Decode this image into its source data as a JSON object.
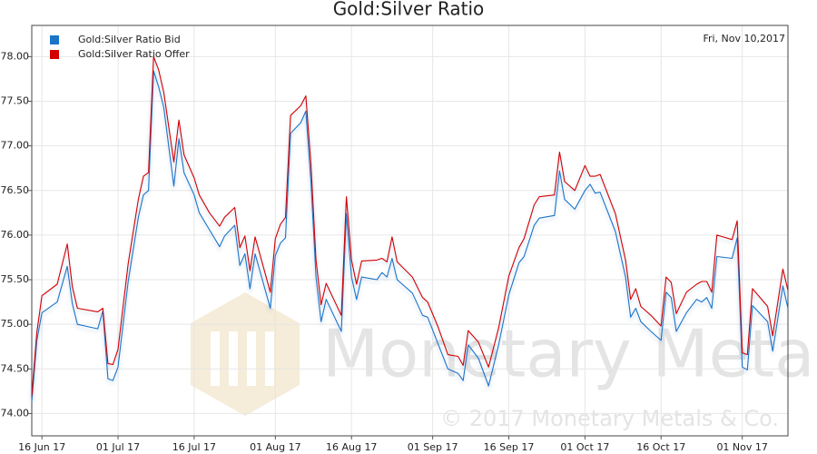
{
  "chart_data": {
    "type": "line",
    "title": "Gold:Silver Ratio",
    "date_label": "Fri, Nov 10,2017",
    "watermark": "Monetary Metals",
    "copyright": "© 2017 Monetary Metals & Co.",
    "legend": "top-left",
    "grid": true,
    "x": [
      "2017-06-14",
      "2017-06-15",
      "2017-06-16",
      "2017-06-19",
      "2017-06-21",
      "2017-06-22",
      "2017-06-23",
      "2017-06-27",
      "2017-06-28",
      "2017-06-29",
      "2017-06-30",
      "2017-07-01",
      "2017-07-03",
      "2017-07-05",
      "2017-07-06",
      "2017-07-07",
      "2017-07-08",
      "2017-07-09",
      "2017-07-10",
      "2017-07-12",
      "2017-07-13",
      "2017-07-14",
      "2017-07-16",
      "2017-07-17",
      "2017-07-19",
      "2017-07-21",
      "2017-07-22",
      "2017-07-24",
      "2017-07-25",
      "2017-07-26",
      "2017-07-27",
      "2017-07-28",
      "2017-07-31",
      "2017-08-01",
      "2017-08-02",
      "2017-08-03",
      "2017-08-04",
      "2017-08-06",
      "2017-08-07",
      "2017-08-08",
      "2017-08-09",
      "2017-08-10",
      "2017-08-11",
      "2017-08-14",
      "2017-08-15",
      "2017-08-16",
      "2017-08-17",
      "2017-08-18",
      "2017-08-21",
      "2017-08-22",
      "2017-08-23",
      "2017-08-24",
      "2017-08-25",
      "2017-08-28",
      "2017-08-30",
      "2017-08-31",
      "2017-09-02",
      "2017-09-04",
      "2017-09-06",
      "2017-09-07",
      "2017-09-08",
      "2017-09-10",
      "2017-09-12",
      "2017-09-14",
      "2017-09-16",
      "2017-09-18",
      "2017-09-19",
      "2017-09-21",
      "2017-09-22",
      "2017-09-25",
      "2017-09-26",
      "2017-09-27",
      "2017-09-29",
      "2017-10-01",
      "2017-10-02",
      "2017-10-03",
      "2017-10-04",
      "2017-10-07",
      "2017-10-09",
      "2017-10-10",
      "2017-10-11",
      "2017-10-12",
      "2017-10-14",
      "2017-10-16",
      "2017-10-17",
      "2017-10-18",
      "2017-10-19",
      "2017-10-21",
      "2017-10-23",
      "2017-10-24",
      "2017-10-25",
      "2017-10-26",
      "2017-10-27",
      "2017-10-30",
      "2017-10-31",
      "2017-11-01",
      "2017-11-02",
      "2017-11-03",
      "2017-11-06",
      "2017-11-07",
      "2017-11-09",
      "2017-11-10"
    ],
    "series": [
      {
        "name": "Gold:Silver Ratio Bid",
        "color": "#1a74c8",
        "values": [
          74.13,
          74.82,
          75.13,
          75.25,
          75.65,
          75.23,
          75.0,
          74.95,
          75.15,
          74.39,
          74.37,
          74.52,
          75.48,
          76.2,
          76.45,
          76.5,
          77.84,
          77.66,
          77.43,
          76.55,
          77.08,
          76.7,
          76.45,
          76.25,
          76.06,
          75.87,
          75.99,
          76.11,
          75.66,
          75.79,
          75.4,
          75.79,
          75.18,
          75.77,
          75.91,
          75.97,
          77.14,
          77.26,
          77.39,
          76.6,
          75.53,
          75.03,
          75.28,
          74.92,
          76.24,
          75.53,
          75.28,
          75.53,
          75.5,
          75.58,
          75.53,
          75.74,
          75.5,
          75.35,
          75.1,
          75.08,
          74.79,
          74.5,
          74.45,
          74.37,
          74.77,
          74.62,
          74.31,
          74.77,
          75.33,
          75.69,
          75.76,
          76.11,
          76.19,
          76.22,
          76.72,
          76.4,
          76.29,
          76.5,
          76.57,
          76.47,
          76.48,
          76.04,
          75.53,
          75.08,
          75.18,
          75.03,
          74.92,
          74.82,
          75.36,
          75.3,
          74.92,
          75.13,
          75.28,
          75.25,
          75.3,
          75.18,
          75.76,
          75.74,
          75.97,
          74.52,
          74.49,
          75.21,
          75.03,
          74.7,
          75.43,
          75.18
        ]
      },
      {
        "name": "Gold:Silver Ratio Offer",
        "color": "#d40000",
        "values": [
          74.2,
          74.91,
          75.32,
          75.45,
          75.9,
          75.42,
          75.18,
          75.14,
          75.18,
          74.56,
          74.55,
          74.72,
          75.68,
          76.4,
          76.66,
          76.7,
          78.0,
          77.85,
          77.6,
          76.82,
          77.29,
          76.9,
          76.64,
          76.45,
          76.25,
          76.1,
          76.2,
          76.31,
          75.86,
          75.99,
          75.6,
          75.98,
          75.36,
          75.96,
          76.12,
          76.2,
          77.34,
          77.45,
          77.56,
          76.8,
          75.72,
          75.22,
          75.46,
          75.1,
          76.43,
          75.72,
          75.45,
          75.71,
          75.72,
          75.74,
          75.7,
          75.98,
          75.7,
          75.53,
          75.3,
          75.25,
          74.98,
          74.66,
          74.64,
          74.54,
          74.93,
          74.8,
          74.52,
          74.96,
          75.54,
          75.86,
          75.96,
          76.34,
          76.43,
          76.45,
          76.93,
          76.6,
          76.5,
          76.78,
          76.66,
          76.66,
          76.68,
          76.24,
          75.72,
          75.28,
          75.4,
          75.2,
          75.1,
          74.98,
          75.53,
          75.47,
          75.12,
          75.36,
          75.45,
          75.48,
          75.48,
          75.36,
          76.0,
          75.95,
          76.16,
          74.68,
          74.66,
          75.4,
          75.2,
          74.87,
          75.62,
          75.38
        ]
      }
    ],
    "xlim": [
      "2017-06-14",
      "2017-11-10"
    ],
    "xticks": [
      {
        "value": "2017-06-16",
        "label": "16 Jun 17"
      },
      {
        "value": "2017-07-01",
        "label": "01 Jul 17"
      },
      {
        "value": "2017-07-16",
        "label": "16 Jul 17"
      },
      {
        "value": "2017-08-01",
        "label": "01 Aug 17"
      },
      {
        "value": "2017-08-16",
        "label": "16 Aug 17"
      },
      {
        "value": "2017-09-01",
        "label": "01 Sep 17"
      },
      {
        "value": "2017-09-16",
        "label": "16 Sep 17"
      },
      {
        "value": "2017-10-01",
        "label": "01 Oct 17"
      },
      {
        "value": "2017-10-16",
        "label": "16 Oct 17"
      },
      {
        "value": "2017-11-01",
        "label": "01 Nov 17"
      }
    ],
    "ylim": [
      73.75,
      78.35
    ],
    "yticks": [
      {
        "value": 74,
        "label": "74.00"
      },
      {
        "value": 74.5,
        "label": "74.50"
      },
      {
        "value": 75,
        "label": "75.00"
      },
      {
        "value": 75.5,
        "label": "75.50"
      },
      {
        "value": 76,
        "label": "76.00"
      },
      {
        "value": 76.5,
        "label": "76.50"
      },
      {
        "value": 77,
        "label": "77.00"
      },
      {
        "value": 77.5,
        "label": "77.50"
      },
      {
        "value": 78,
        "label": "78.00"
      }
    ]
  }
}
